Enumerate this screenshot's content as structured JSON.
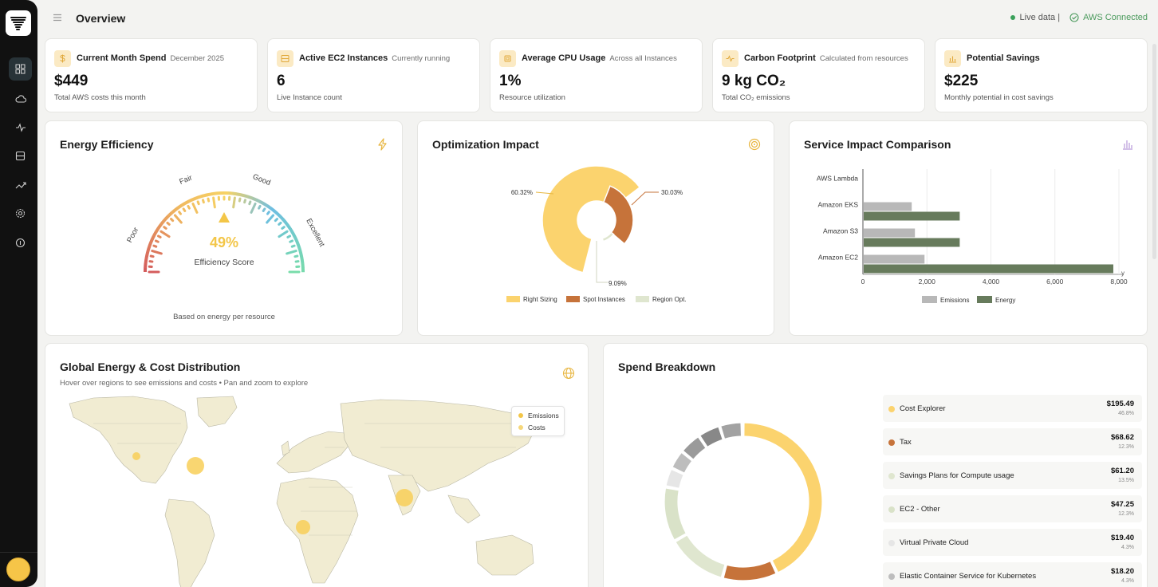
{
  "header": {
    "title": "Overview",
    "live_label": "Live data |",
    "aws_label": "AWS Connected"
  },
  "nav": {
    "items": [
      "dashboard",
      "cloud",
      "activity",
      "storage",
      "trends",
      "settings",
      "help"
    ],
    "active": "dashboard"
  },
  "stats": [
    {
      "title": "Current Month Spend",
      "subtitle": "December 2025",
      "value": "$449",
      "desc": "Total AWS costs this month",
      "icon": "dollar-icon"
    },
    {
      "title": "Active EC2 Instances",
      "subtitle": "Currently running",
      "value": "6",
      "desc": "Live Instance count",
      "icon": "server-icon"
    },
    {
      "title": "Average CPU Usage",
      "subtitle": "Across all Instances",
      "value": "1%",
      "desc": "Resource utilization",
      "icon": "cpu-icon"
    },
    {
      "title": "Carbon Footprint",
      "subtitle": "Calculated from resources",
      "value": "9 kg CO₂",
      "desc": "Total CO₂ emissions",
      "icon": "pulse-icon"
    },
    {
      "title": "Potential Savings",
      "subtitle": "",
      "value": "$225",
      "desc": "Monthly potential in cost savings",
      "icon": "bar-chart-icon"
    }
  ],
  "energy": {
    "title": "Energy Efficiency",
    "score": "49%",
    "score_value": 49,
    "score_label": "Efficiency Score",
    "labels": [
      "Poor",
      "Fair",
      "Good",
      "Excellent"
    ],
    "footer": "Based on energy per resource"
  },
  "optimization": {
    "title": "Optimization Impact",
    "chart_data": {
      "type": "pie",
      "categories": [
        "Right Sizing",
        "Spot Instances",
        "Region Opt."
      ],
      "values": [
        60.32,
        30.03,
        9.09
      ],
      "labels": [
        "60.32%",
        "30.03%",
        "9.09%"
      ],
      "colors": [
        "#fbd36e",
        "#c6733a",
        "#dfe6cf"
      ],
      "legend": "bottom"
    }
  },
  "service": {
    "title": "Service Impact Comparison",
    "chart_data": {
      "type": "bar",
      "orientation": "horizontal",
      "categories": [
        "AWS Lambda",
        "Amazon EKS",
        "Amazon S3",
        "Amazon EC2"
      ],
      "series": [
        {
          "name": "Emissions",
          "values": [
            0,
            1500,
            1600,
            1900
          ],
          "color": "#b8b8b8"
        },
        {
          "name": "Energy",
          "values": [
            0,
            3000,
            3000,
            7800
          ],
          "color": "#677b5c"
        }
      ],
      "xlim": [
        0,
        8000
      ],
      "ticks": [
        "0",
        "2,000",
        "4,000",
        "6,000",
        "8,000"
      ],
      "axis_suffix": "y",
      "legend": "bottom"
    }
  },
  "map": {
    "title": "Global Energy & Cost Distribution",
    "subtitle": "Hover over regions to see emissions and costs • Pan and zoom to explore",
    "legend": [
      "Emissions",
      "Costs"
    ]
  },
  "spend": {
    "title": "Spend Breakdown",
    "items": [
      {
        "name": "Cost Explorer",
        "value": "$195.49",
        "pct": "46.8%",
        "color": "#fbd36e"
      },
      {
        "name": "Tax",
        "value": "$68.62",
        "pct": "12.3%",
        "color": "#c6733a"
      },
      {
        "name": "Savings Plans for Compute usage",
        "value": "$61.20",
        "pct": "13.5%",
        "color": "#dfe6cf"
      },
      {
        "name": "EC2 - Other",
        "value": "$47.25",
        "pct": "12.3%",
        "color": "#d9e2c8"
      },
      {
        "name": "Virtual Private Cloud",
        "value": "$19.40",
        "pct": "4.3%",
        "color": "#e6e6e6"
      },
      {
        "name": "Elastic Container Service for Kubernetes",
        "value": "$18.20",
        "pct": "4.3%",
        "color": "#bdbdbd"
      }
    ],
    "chart_data": {
      "type": "pie",
      "variant": "donut",
      "categories": [
        "Cost Explorer",
        "Tax",
        "Savings Plans for Compute usage",
        "EC2 - Other",
        "Virtual Private Cloud",
        "Elastic Container Service for Kubernetes"
      ],
      "values": [
        46.8,
        12.3,
        13.5,
        12.3,
        4.3,
        4.3
      ]
    }
  }
}
